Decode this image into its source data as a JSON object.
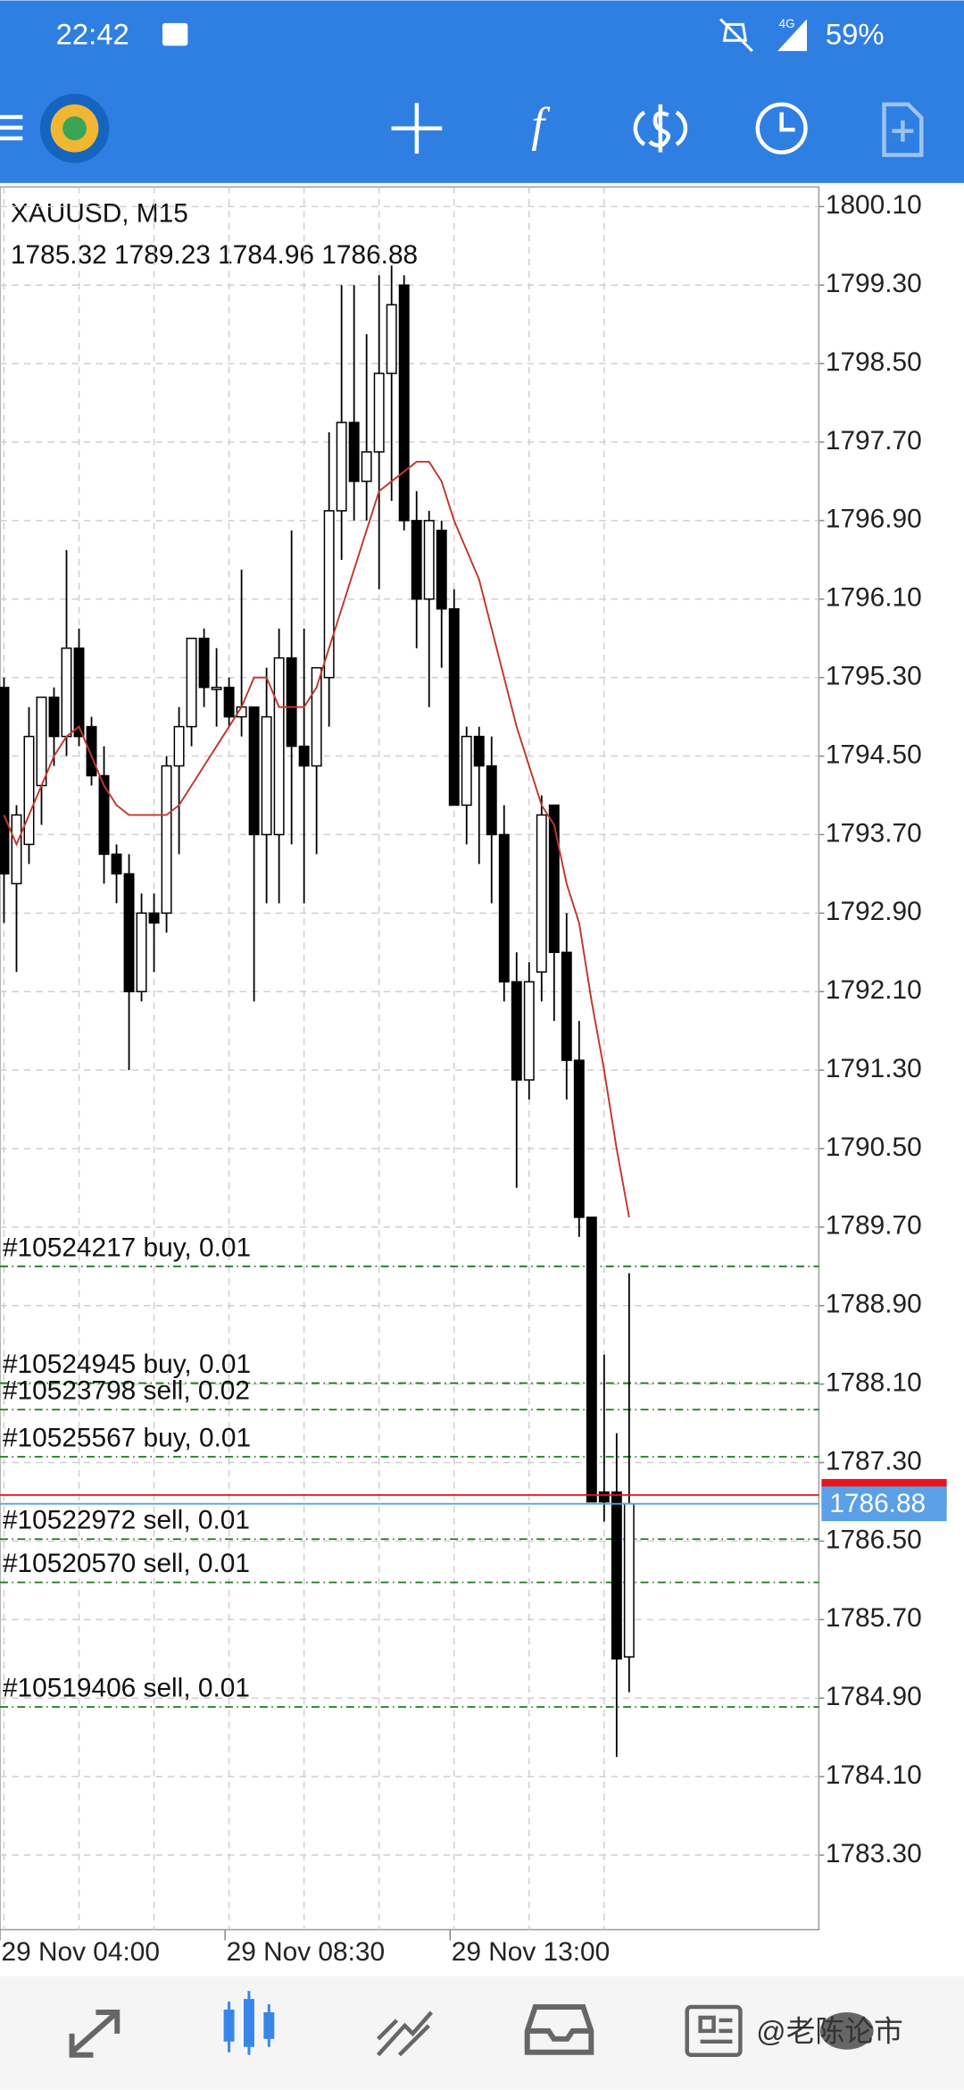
{
  "status_bar": {
    "time": "22:42",
    "network": "4G",
    "battery": "59%"
  },
  "watermark": "@老陈论市",
  "chart_data": {
    "type": "candlestick",
    "title": "XAUUSD, M15",
    "categories": [
      "29 Nov 04:00",
      null,
      null,
      null,
      null,
      null,
      null,
      null,
      null,
      null,
      null,
      null,
      null,
      null,
      null,
      null,
      null,
      null,
      "29 Nov 08:30",
      null,
      null,
      null,
      null,
      null,
      null,
      null,
      null,
      null,
      null,
      null,
      null,
      null,
      null,
      null,
      null,
      null,
      "29 Nov 13:00",
      null,
      null,
      null,
      null,
      null,
      null,
      null,
      null,
      null,
      null,
      null,
      null,
      null,
      null
    ],
    "open": [
      1795.2,
      1793.2,
      1793.6,
      1794.2,
      1795.1,
      1794.7,
      1795.6,
      1794.8,
      1794.3,
      1793.5,
      1793.3,
      1792.1,
      1792.9,
      1792.9,
      1794.4,
      1794.8,
      1795.7,
      1795.2,
      1795.2,
      1794.9,
      1795.0,
      1793.7,
      1793.7,
      1795.5,
      1794.6,
      1794.4,
      1795.3,
      1797.0,
      1797.9,
      1797.3,
      1797.6,
      1798.4,
      1799.3,
      1796.9,
      1796.1,
      1796.8,
      1796.0,
      1794.0,
      1794.7,
      1794.4,
      1793.7,
      1792.2,
      1791.2,
      1792.3,
      1794.0,
      1792.5,
      1791.4,
      1789.8,
      1787.0,
      1787.0,
      1785.32
    ],
    "high": [
      1795.3,
      1794.0,
      1795.0,
      1795.1,
      1795.2,
      1796.6,
      1795.8,
      1794.9,
      1794.6,
      1793.6,
      1793.5,
      1793.1,
      1793.1,
      1794.5,
      1795.0,
      1795.7,
      1795.8,
      1795.6,
      1795.3,
      1796.4,
      1795.0,
      1795.4,
      1795.8,
      1796.8,
      1795.8,
      1795.4,
      1797.8,
      1799.3,
      1799.3,
      1798.8,
      1799.4,
      1799.5,
      1799.4,
      1797.2,
      1797.0,
      1796.9,
      1796.2,
      1794.8,
      1794.8,
      1794.7,
      1794.0,
      1792.5,
      1792.4,
      1794.1,
      1794.0,
      1792.9,
      1791.8,
      1789.8,
      1788.4,
      1787.6,
      1789.23
    ],
    "low": [
      1792.8,
      1792.3,
      1793.4,
      1793.8,
      1794.4,
      1794.5,
      1794.6,
      1794.2,
      1793.2,
      1793.0,
      1791.3,
      1792.0,
      1792.3,
      1792.7,
      1793.5,
      1794.6,
      1795.0,
      1794.8,
      1794.8,
      1794.7,
      1792.0,
      1793.0,
      1793.0,
      1793.6,
      1793.0,
      1793.5,
      1794.8,
      1796.5,
      1796.9,
      1796.9,
      1796.2,
      1797.1,
      1796.8,
      1795.6,
      1795.0,
      1795.4,
      1794.0,
      1793.6,
      1793.4,
      1793.0,
      1792.0,
      1790.1,
      1791.0,
      1792.0,
      1791.8,
      1791.0,
      1789.6,
      1786.9,
      1786.7,
      1784.3,
      1784.96
    ],
    "close": [
      1793.3,
      1793.9,
      1794.7,
      1795.1,
      1794.7,
      1795.6,
      1794.7,
      1794.3,
      1793.5,
      1793.3,
      1792.1,
      1792.9,
      1792.8,
      1794.4,
      1794.8,
      1795.7,
      1795.2,
      1795.2,
      1794.9,
      1795.0,
      1793.7,
      1794.9,
      1795.5,
      1794.6,
      1794.4,
      1795.4,
      1797.0,
      1797.9,
      1797.3,
      1797.6,
      1798.4,
      1799.1,
      1796.9,
      1796.1,
      1796.9,
      1796.0,
      1794.0,
      1794.7,
      1794.4,
      1793.7,
      1792.2,
      1791.2,
      1792.2,
      1793.9,
      1792.5,
      1791.4,
      1789.8,
      1786.9,
      1786.9,
      1785.3,
      1786.88
    ],
    "ma": {
      "color": "#c0392b",
      "values": [
        1793.9,
        1793.6,
        1793.9,
        1794.2,
        1794.5,
        1794.7,
        1794.8,
        1794.5,
        1794.2,
        1794.0,
        1793.9,
        1793.9,
        1793.9,
        1793.9,
        1794.0,
        1794.2,
        1794.4,
        1794.6,
        1794.8,
        1795.0,
        1795.3,
        1795.3,
        1795.0,
        1795.0,
        1795.0,
        1795.2,
        1795.6,
        1796.0,
        1796.4,
        1796.8,
        1797.2,
        1797.3,
        1797.4,
        1797.5,
        1797.5,
        1797.3,
        1796.9,
        1796.6,
        1796.3,
        1795.8,
        1795.3,
        1794.8,
        1794.4,
        1794.0,
        1793.8,
        1793.2,
        1792.8,
        1792.0,
        1791.3,
        1790.5,
        1789.8
      ]
    },
    "up_color": "#ffffff",
    "down_color": "#000000",
    "ylim": [
      1782.54,
      1800.3
    ],
    "yticks": [
      {
        "value": 1800.1,
        "label": "1800.10"
      },
      {
        "value": 1799.3,
        "label": "1799.30"
      },
      {
        "value": 1798.5,
        "label": "1798.50"
      },
      {
        "value": 1797.7,
        "label": "1797.70"
      },
      {
        "value": 1796.9,
        "label": "1796.90"
      },
      {
        "value": 1796.1,
        "label": "1796.10"
      },
      {
        "value": 1795.3,
        "label": "1795.30"
      },
      {
        "value": 1794.5,
        "label": "1794.50"
      },
      {
        "value": 1793.7,
        "label": "1793.70"
      },
      {
        "value": 1792.9,
        "label": "1792.90"
      },
      {
        "value": 1792.1,
        "label": "1792.10"
      },
      {
        "value": 1791.3,
        "label": "1791.30"
      },
      {
        "value": 1790.5,
        "label": "1790.50"
      },
      {
        "value": 1789.7,
        "label": "1789.70"
      },
      {
        "value": 1788.9,
        "label": "1788.90"
      },
      {
        "value": 1788.1,
        "label": "1788.10"
      },
      {
        "value": 1787.3,
        "label": "1787.30"
      },
      {
        "value": 1786.5,
        "label": "1786.50"
      },
      {
        "value": 1785.7,
        "label": "1785.70"
      },
      {
        "value": 1784.9,
        "label": "1784.90"
      },
      {
        "value": 1784.1,
        "label": "1784.10"
      },
      {
        "value": 1783.3,
        "label": "1783.30"
      }
    ],
    "grid": true,
    "orders": [
      {
        "label": "#10524217 buy, 0.01",
        "price": 1789.3
      },
      {
        "label": "#10524945 buy, 0.01",
        "price": 1788.11
      },
      {
        "label": "#10523798 sell, 0.02",
        "price": 1787.84
      },
      {
        "label": "#10525567 buy, 0.01",
        "price": 1787.36
      },
      {
        "label": "#10522972 sell, 0.01",
        "price": 1786.52
      },
      {
        "label": "#10520570 sell, 0.01",
        "price": 1786.08
      },
      {
        "label": "#10519406 sell, 0.01",
        "price": 1784.81
      }
    ],
    "order_color": "#1a7a1a",
    "ask": 1786.97,
    "ask_color": "#e8141c",
    "bid": 1786.88,
    "bid_color": "#5aa0e6"
  }
}
